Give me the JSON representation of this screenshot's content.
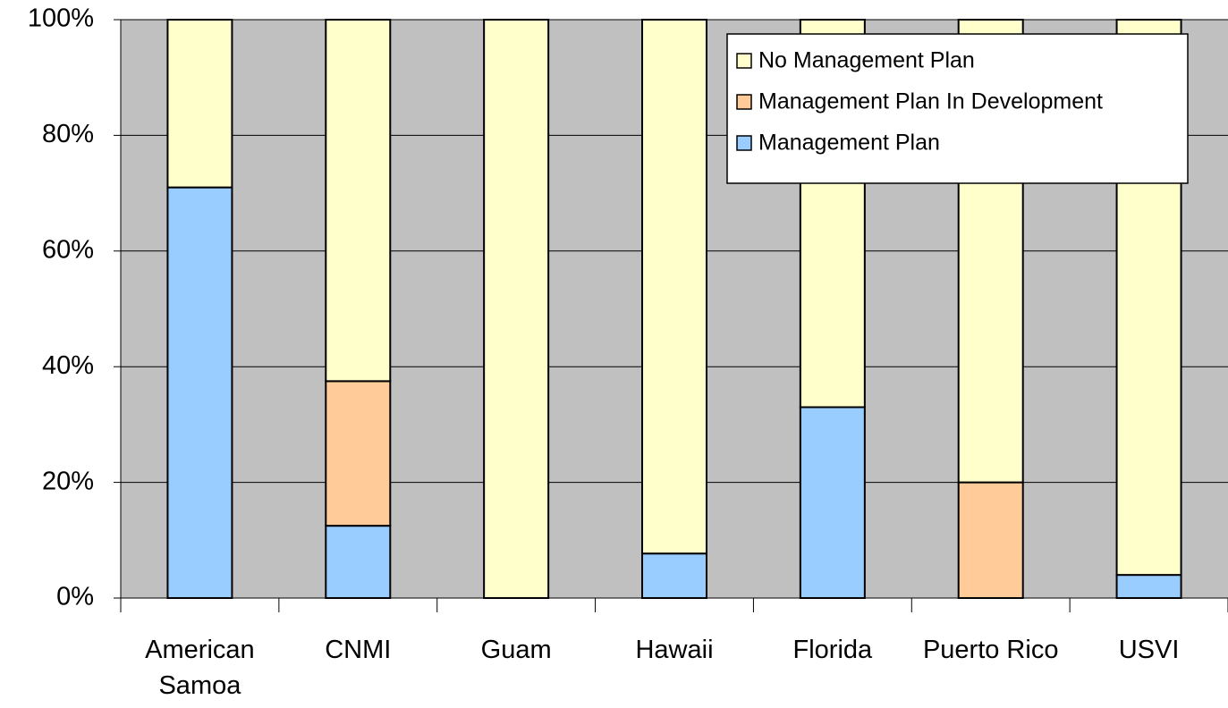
{
  "chart_data": {
    "type": "stacked_bar",
    "categories": [
      "American Samoa",
      "CNMI",
      "Guam",
      "Hawaii",
      "Florida",
      "Puerto Rico",
      "USVI"
    ],
    "series": [
      {
        "name": "Management Plan",
        "color": "#99ccff",
        "values": [
          71,
          12.5,
          0,
          7.7,
          33,
          0,
          4
        ]
      },
      {
        "name": "Management Plan In Development",
        "color": "#ffcc99",
        "values": [
          0,
          25,
          0,
          0,
          0,
          20,
          0
        ]
      },
      {
        "name": "No Management Plan",
        "color": "#ffffcc",
        "values": [
          29,
          62.5,
          100,
          92.3,
          67,
          80,
          96
        ]
      }
    ],
    "ylim": [
      0,
      100
    ],
    "yticks": [
      {
        "value": 0,
        "label": "0%"
      },
      {
        "value": 20,
        "label": "20%"
      },
      {
        "value": 40,
        "label": "40%"
      },
      {
        "value": 60,
        "label": "60%"
      },
      {
        "value": 80,
        "label": "80%"
      },
      {
        "value": 100,
        "label": "100%"
      }
    ],
    "grid": true,
    "plot_background": "#c0c0c0",
    "legend": "top-right"
  }
}
